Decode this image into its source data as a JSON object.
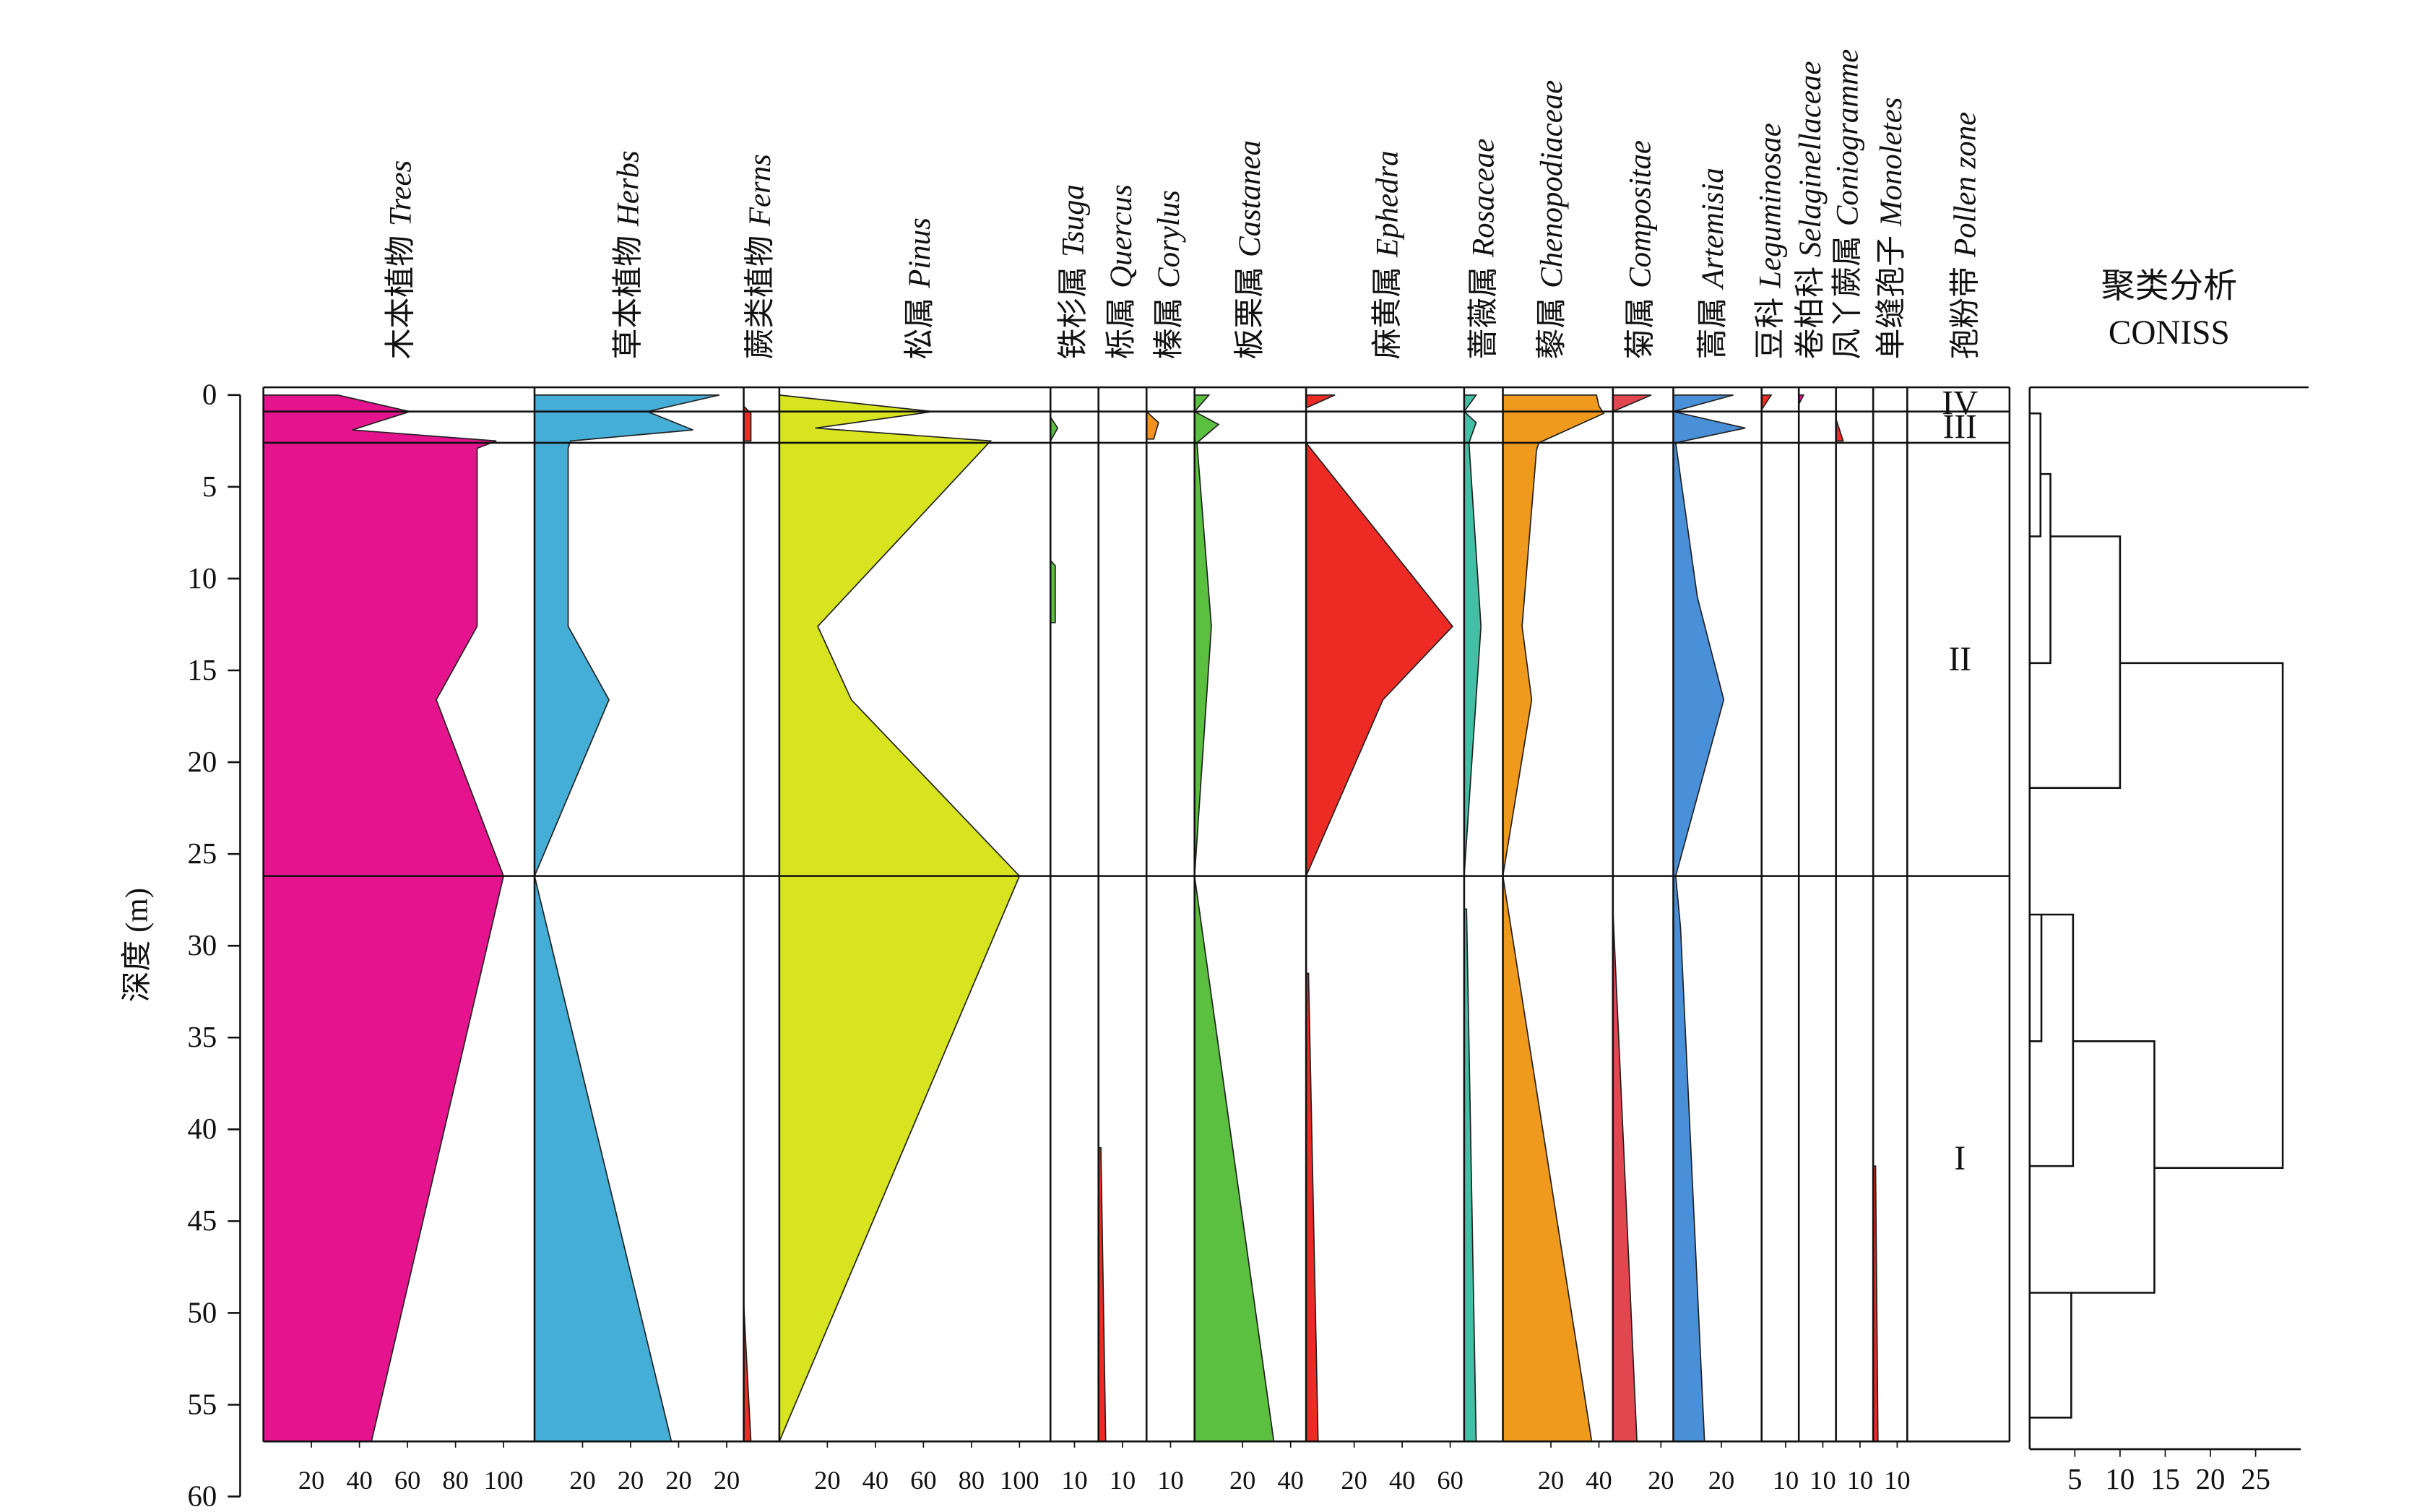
{
  "chart_data": {
    "type": "pollen_diagram",
    "y_axis": {
      "label": "深度 (m)",
      "ylim": [
        0,
        60
      ],
      "yticks": [
        0,
        5,
        10,
        15,
        20,
        25,
        30,
        35,
        40,
        45,
        50,
        55,
        60
      ]
    },
    "zone_header": {
      "name_cn": "孢粉带",
      "name_latin": "Pollen zone"
    },
    "zones": [
      {
        "label": "IV",
        "top": 0,
        "bottom": 0.9
      },
      {
        "label": "III",
        "top": 0.9,
        "bottom": 2.6
      },
      {
        "label": "II",
        "top": 2.6,
        "bottom": 26.2
      },
      {
        "label": "I",
        "top": 26.2,
        "bottom": 57
      }
    ],
    "taxa": [
      {
        "name_cn": "木本植物",
        "name_latin": "Trees",
        "color": "#e5138e",
        "xticks": [
          20,
          40,
          60,
          80,
          100
        ],
        "segments": [
          {
            "depths": [
              0,
              0.9,
              1.9,
              2.5,
              2.9,
              12.6,
              16.6,
              26.2,
              57
            ],
            "values": [
              31,
              61,
              37,
              97,
              89,
              89,
              72,
              100,
              45
            ]
          }
        ]
      },
      {
        "name_cn": "草本植物",
        "name_latin": "Herbs",
        "color": "#45aed6",
        "xticks": [
          20,
          {
            "value": 40,
            "label": "20"
          },
          {
            "value": 60,
            "label": "20"
          },
          {
            "value": 80,
            "label": "20"
          }
        ],
        "segments": [
          {
            "depths": [
              0,
              0.9,
              1.9,
              2.5,
              2.9,
              12.6,
              16.6,
              26.2,
              57
            ],
            "values": [
              77,
              47,
              66,
              15,
              14,
              14,
              31,
              0,
              57
            ]
          }
        ]
      },
      {
        "name_cn": "蕨类植物",
        "name_latin": "Ferns",
        "color": "#ee2a24",
        "xticks": [],
        "segments": [
          {
            "depths": [
              0.6,
              1.0,
              2.5
            ],
            "values": [
              0,
              3,
              3
            ]
          },
          {
            "depths": [
              49.5,
              57
            ],
            "values": [
              0,
              3
            ]
          }
        ]
      },
      {
        "name_cn": "松属",
        "name_latin": "Pinus",
        "color": "#d7e41f",
        "xticks": [
          20,
          40,
          60,
          80,
          100
        ],
        "segments": [
          {
            "depths": [
              0,
              0.9,
              1.8,
              2.5,
              12.6,
              16.6,
              26.2,
              57
            ],
            "values": [
              0,
              64,
              15,
              88,
              16,
              30,
              100,
              0
            ]
          }
        ]
      },
      {
        "name_cn": "铁杉属",
        "name_latin": "Tsuga",
        "color": "#5bbf3f",
        "xticks": [
          10
        ],
        "segments": [
          {
            "depths": [
              1.2,
              1.8,
              2.5
            ],
            "values": [
              0,
              3,
              0
            ]
          },
          {
            "depths": [
              9,
              9.3,
              12.4
            ],
            "values": [
              0,
              2,
              2
            ]
          }
        ]
      },
      {
        "name_cn": "栎属",
        "name_latin": "Quercus",
        "color": "#ee2a24",
        "xticks": [
          10
        ],
        "segments": [
          {
            "depths": [
              41,
              57
            ],
            "values": [
              1,
              3
            ]
          }
        ]
      },
      {
        "name_cn": "榛属",
        "name_latin": "Corylus",
        "color": "#f39221",
        "xticks": [
          10
        ],
        "segments": [
          {
            "depths": [
              0.9,
              1.5,
              2.4
            ],
            "values": [
              0,
              5,
              3
            ]
          }
        ]
      },
      {
        "name_cn": "板栗属",
        "name_latin": "Castanea",
        "color": "#5bbf3f",
        "xticks": [
          20,
          40
        ],
        "segments": [
          {
            "depths": [
              0,
              0.9,
              1.6,
              2.6,
              12.6,
              26.2,
              57
            ],
            "values": [
              6,
              0,
              10,
              1,
              7,
              0,
              33
            ]
          }
        ]
      },
      {
        "name_cn": "麻黄属",
        "name_latin": "Ephedra",
        "color": "#ee2a24",
        "xticks": [
          20,
          40,
          60
        ],
        "segments": [
          {
            "depths": [
              0,
              0.7
            ],
            "values": [
              12,
              0
            ]
          },
          {
            "depths": [
              2.6,
              12.6,
              16.6,
              26.2
            ],
            "values": [
              0,
              61,
              32,
              0
            ]
          },
          {
            "depths": [
              31.5,
              57
            ],
            "values": [
              1,
              5
            ]
          }
        ]
      },
      {
        "name_cn": "蔷薇属",
        "name_latin": "Rosaceae",
        "color": "#44bfa5",
        "xticks": [],
        "segments": [
          {
            "depths": [
              0,
              0.9,
              1.5,
              2.6,
              12.6,
              26.2
            ],
            "values": [
              5,
              0,
              5,
              2,
              7,
              0
            ]
          },
          {
            "depths": [
              28,
              57
            ],
            "values": [
              1,
              5
            ]
          }
        ]
      },
      {
        "name_cn": "藜属",
        "name_latin": "Chenopodiaceae",
        "color": "#ef9a1c",
        "xticks": [
          20,
          40
        ],
        "segments": [
          {
            "depths": [
              0,
              0.6,
              1,
              2.6,
              3,
              12.6,
              16.6,
              26.2,
              57
            ],
            "values": [
              39,
              40,
              42,
              15,
              14,
              8,
              12,
              0,
              37
            ]
          }
        ]
      },
      {
        "name_cn": "菊属",
        "name_latin": "Compositae",
        "color": "#e2474f",
        "xticks": [
          20
        ],
        "segments": [
          {
            "depths": [
              0,
              0.9
            ],
            "values": [
              16,
              0
            ]
          },
          {
            "depths": [
              28,
              57
            ],
            "values": [
              0,
              10
            ]
          }
        ]
      },
      {
        "name_cn": "蒿属",
        "name_latin": "Artemisia",
        "color": "#4a90d9",
        "xticks": [
          20
        ],
        "segments": [
          {
            "depths": [
              0,
              0.9,
              1.8,
              2.6,
              11,
              16.6,
              26.2,
              29,
              57
            ],
            "values": [
              25,
              0,
              30,
              1,
              10,
              21,
              1,
              3,
              13
            ]
          }
        ]
      },
      {
        "name_cn": "豆科",
        "name_latin": "Leguminosae",
        "color": "#ee2a24",
        "xticks": [
          10
        ],
        "segments": [
          {
            "depths": [
              0,
              0.8
            ],
            "values": [
              4,
              0
            ]
          }
        ]
      },
      {
        "name_cn": "卷柏科",
        "name_latin": "Selaginellaceae",
        "color": "#e5138e",
        "xticks": [
          10
        ],
        "segments": [
          {
            "depths": [
              0,
              0.5
            ],
            "values": [
              2,
              0
            ]
          }
        ]
      },
      {
        "name_cn": "凤丫蕨属",
        "name_latin": "Coniogramme",
        "color": "#ee2a24",
        "xticks": [
          10
        ],
        "segments": [
          {
            "depths": [
              1.3,
              2.5
            ],
            "values": [
              0,
              3
            ]
          }
        ]
      },
      {
        "name_cn": "单缝孢子",
        "name_latin": "Monoletes",
        "color": "#ee2a24",
        "xticks": [
          10
        ],
        "segments": [
          {
            "depths": [
              42,
              57
            ],
            "values": [
              1,
              2
            ]
          }
        ]
      }
    ],
    "coniss": {
      "title": "聚类分析",
      "subtitle": "CONISS",
      "xlim": [
        0,
        30
      ],
      "xticks": [
        5,
        10,
        15,
        20,
        25
      ],
      "brackets": [
        {
          "x": 1.2,
          "y1": 1.0,
          "y2": 7.7,
          "x1": 0,
          "x2": 0
        },
        {
          "x": 2.3,
          "y1": 4.3,
          "y2": 14.6,
          "x1": 1.2,
          "x2": 0
        },
        {
          "x": 10,
          "y1": 7.7,
          "y2": 21.4,
          "x1": 2.3,
          "x2": 0
        },
        {
          "x": 28,
          "y1": 14.6,
          "y2": 42.1,
          "x1": 10,
          "x2": 13.8
        },
        {
          "x": 1.3,
          "y1": 28.3,
          "y2": 35.2,
          "x1": 0,
          "x2": 0
        },
        {
          "x": 4.8,
          "y1": 28.3,
          "y2": 42,
          "x1": 1.3,
          "x2": 0
        },
        {
          "x": 13.8,
          "y1": 35.2,
          "y2": 48.9,
          "x1": 4.8,
          "x2": 4.6
        },
        {
          "x": 4.6,
          "y1": 48.9,
          "y2": 55.7,
          "x1": 0,
          "x2": 0
        }
      ]
    }
  }
}
